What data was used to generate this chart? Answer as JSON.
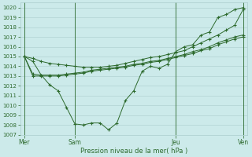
{
  "bg_color": "#cceaea",
  "grid_color": "#aacccc",
  "line_color": "#2d6a2d",
  "ylabel": "Pression niveau de la mer( hPa )",
  "ylim": [
    1007,
    1020.5
  ],
  "yticks": [
    1007,
    1008,
    1009,
    1010,
    1011,
    1012,
    1013,
    1014,
    1015,
    1016,
    1017,
    1018,
    1019,
    1020
  ],
  "xtick_labels": [
    "Mer",
    "Sam",
    "Jeu",
    "Ven"
  ],
  "xtick_positions": [
    0,
    6,
    18,
    26
  ],
  "vline_positions": [
    0,
    6,
    18,
    26
  ],
  "figsize": [
    3.2,
    2.0
  ],
  "dpi": 100,
  "series1": [
    1015.0,
    1014.5,
    1013.1,
    1012.1,
    1011.5,
    1009.8,
    1008.1,
    1008.0,
    1008.2,
    1008.2,
    1007.5,
    1008.2,
    1010.5,
    1011.5,
    1013.5,
    1014.0,
    1013.8,
    1014.2,
    1015.5,
    1016.0,
    1016.2,
    1017.2,
    1017.5,
    1019.0,
    1019.3,
    1019.8,
    1020.0
  ],
  "series2": [
    1015.0,
    1014.8,
    1014.5,
    1014.3,
    1014.2,
    1014.1,
    1014.0,
    1013.9,
    1013.9,
    1013.9,
    1014.0,
    1014.1,
    1014.3,
    1014.5,
    1014.7,
    1014.9,
    1015.0,
    1015.2,
    1015.4,
    1015.6,
    1016.0,
    1016.4,
    1016.8,
    1017.2,
    1017.7,
    1018.2,
    1019.8
  ],
  "series3": [
    1015.0,
    1013.2,
    1013.1,
    1013.1,
    1013.1,
    1013.2,
    1013.3,
    1013.4,
    1013.6,
    1013.7,
    1013.8,
    1013.9,
    1014.0,
    1014.2,
    1014.3,
    1014.5,
    1014.6,
    1014.8,
    1015.0,
    1015.2,
    1015.5,
    1015.7,
    1016.0,
    1016.4,
    1016.7,
    1017.0,
    1017.2
  ],
  "series4": [
    1015.0,
    1013.0,
    1013.0,
    1013.0,
    1013.0,
    1013.1,
    1013.2,
    1013.3,
    1013.5,
    1013.6,
    1013.7,
    1013.8,
    1013.9,
    1014.1,
    1014.2,
    1014.4,
    1014.5,
    1014.7,
    1014.9,
    1015.1,
    1015.3,
    1015.6,
    1015.8,
    1016.2,
    1016.5,
    1016.8,
    1017.0
  ]
}
